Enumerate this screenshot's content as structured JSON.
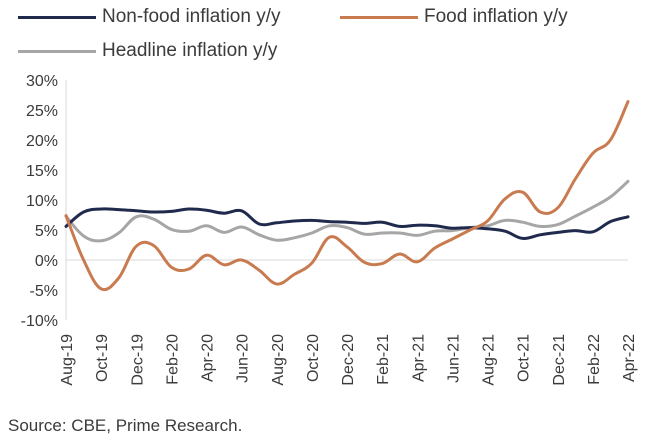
{
  "chart_data": {
    "type": "line",
    "title": "",
    "xlabel": "",
    "ylabel": "",
    "ylim": [
      -10,
      30
    ],
    "yticks": [
      -10,
      -5,
      0,
      5,
      10,
      15,
      20,
      25,
      30
    ],
    "ytick_labels": [
      "-10%",
      "-5%",
      "0%",
      "5%",
      "10%",
      "15%",
      "20%",
      "25%",
      "30%"
    ],
    "xtick_labels": [
      "Aug-19",
      "Oct-19",
      "Dec-19",
      "Feb-20",
      "Apr-20",
      "Jun-20",
      "Aug-20",
      "Oct-20",
      "Dec-20",
      "Feb-21",
      "Apr-21",
      "Jun-21",
      "Aug-21",
      "Oct-21",
      "Dec-21",
      "Feb-22",
      "Apr-22"
    ],
    "x": [
      "Aug-19",
      "Sep-19",
      "Oct-19",
      "Nov-19",
      "Dec-19",
      "Jan-20",
      "Feb-20",
      "Mar-20",
      "Apr-20",
      "May-20",
      "Jun-20",
      "Jul-20",
      "Aug-20",
      "Sep-20",
      "Oct-20",
      "Nov-20",
      "Dec-20",
      "Jan-21",
      "Feb-21",
      "Mar-21",
      "Apr-21",
      "May-21",
      "Jun-21",
      "Jul-21",
      "Aug-21",
      "Sep-21",
      "Oct-21",
      "Nov-21",
      "Dec-21",
      "Jan-22",
      "Feb-22",
      "Mar-22",
      "Apr-22"
    ],
    "series": [
      {
        "name": "Non-food inflation y/y",
        "color": "#1f2a4d",
        "values": [
          5.6,
          8.0,
          8.5,
          8.4,
          8.2,
          8.0,
          8.1,
          8.5,
          8.3,
          7.8,
          8.2,
          6.0,
          6.2,
          6.5,
          6.6,
          6.4,
          6.3,
          6.1,
          6.3,
          5.6,
          5.8,
          5.7,
          5.3,
          5.4,
          5.2,
          4.8,
          3.6,
          4.2,
          4.6,
          4.9,
          4.7,
          6.4,
          7.2
        ]
      },
      {
        "name": "Food inflation y/y",
        "color": "#c97b50",
        "values": [
          7.4,
          0.0,
          -4.8,
          -3.0,
          2.3,
          2.4,
          -1.2,
          -1.5,
          0.8,
          -0.8,
          0.0,
          -1.7,
          -4.0,
          -2.4,
          -0.5,
          3.8,
          2.2,
          -0.4,
          -0.6,
          1.0,
          -0.3,
          2.0,
          3.5,
          5.0,
          6.5,
          10.2,
          11.3,
          8.0,
          8.7,
          13.5,
          17.8,
          20.0,
          26.4
        ]
      },
      {
        "name": "Headline inflation y/y",
        "color": "#a6a6a6",
        "values": [
          7.3,
          4.0,
          3.2,
          4.5,
          7.2,
          6.8,
          5.1,
          4.8,
          5.7,
          4.6,
          5.5,
          4.2,
          3.3,
          3.7,
          4.5,
          5.7,
          5.4,
          4.3,
          4.5,
          4.5,
          4.1,
          4.8,
          4.9,
          5.4,
          5.7,
          6.6,
          6.3,
          5.6,
          5.9,
          7.3,
          8.8,
          10.5,
          13.1
        ]
      }
    ],
    "legend": "top"
  },
  "source": "Source: CBE, Prime Research."
}
